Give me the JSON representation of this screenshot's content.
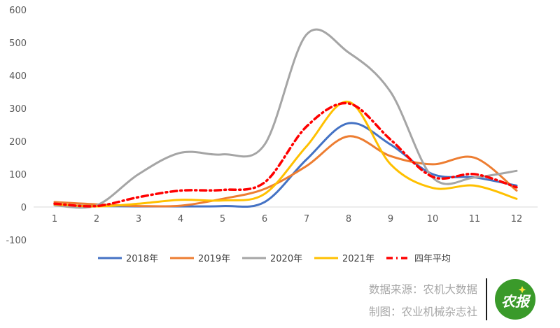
{
  "chart_data": {
    "type": "line",
    "title": "",
    "xlabel": "",
    "ylabel": "",
    "x": [
      1,
      2,
      3,
      4,
      5,
      6,
      7,
      8,
      9,
      10,
      11,
      12
    ],
    "x_tick_labels": [
      "1",
      "2",
      "3",
      "4",
      "5",
      "6",
      "7",
      "8",
      "9",
      "10",
      "11",
      "12"
    ],
    "ylim": [
      -100,
      600
    ],
    "y_ticks": [
      -100,
      0,
      100,
      200,
      300,
      400,
      500,
      600
    ],
    "y_tick_labels": [
      "-100",
      "0",
      "100",
      "200",
      "300",
      "400",
      "500",
      "600"
    ],
    "grid": false,
    "legend_position": "bottom",
    "series": [
      {
        "name": "2018年",
        "color": "#4472c4",
        "dash": "solid",
        "values": [
          5,
          3,
          2,
          2,
          3,
          15,
          145,
          255,
          190,
          100,
          90,
          65
        ]
      },
      {
        "name": "2019年",
        "color": "#ed7d31",
        "dash": "solid",
        "values": [
          15,
          8,
          3,
          4,
          25,
          55,
          125,
          215,
          155,
          130,
          150,
          50
        ]
      },
      {
        "name": "2020年",
        "color": "#a5a5a5",
        "dash": "solid",
        "values": [
          5,
          5,
          100,
          165,
          160,
          190,
          525,
          470,
          350,
          90,
          90,
          110
        ]
      },
      {
        "name": "2021年",
        "color": "#ffc000",
        "dash": "solid",
        "values": [
          8,
          2,
          10,
          22,
          20,
          40,
          185,
          320,
          130,
          58,
          65,
          25
        ]
      },
      {
        "name": "四年平均",
        "color": "#ff0000",
        "dash": "dashdot",
        "values": [
          10,
          3,
          30,
          50,
          52,
          75,
          245,
          315,
          205,
          92,
          100,
          60
        ]
      }
    ]
  },
  "credits": {
    "source": "数据来源：农机大数据",
    "maker": "制图：农业机械杂志社"
  },
  "logo": {
    "icon": "farm-logo-icon",
    "color": "#3a9a2a",
    "text": "农报"
  }
}
